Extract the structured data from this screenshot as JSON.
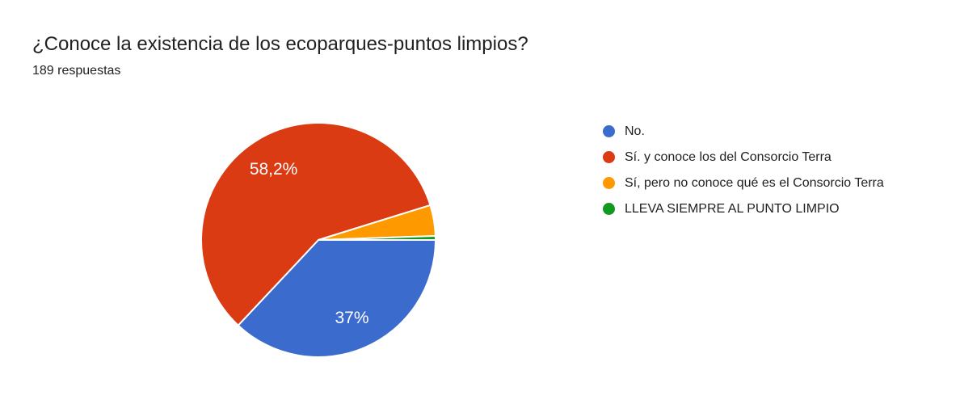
{
  "header": {
    "title": "¿Conoce la existencia de los ecoparques-puntos limpios?",
    "subtitle": "189 respuestas"
  },
  "chart_data": {
    "type": "pie",
    "title": "¿Conoce la existencia de los ecoparques-puntos limpios?",
    "subtitle": "189 respuestas",
    "start_angle_deg": 0,
    "direction": "clockwise",
    "legend_position": "right",
    "inner_label_color": "#ffffff",
    "slices": [
      {
        "label": "No.",
        "pct": 37.0,
        "display_pct": "37%",
        "color": "#3c6bce"
      },
      {
        "label": "Sí. y conoce los del Consorcio Terra",
        "pct": 58.2,
        "display_pct": "58,2%",
        "color": "#db3b13"
      },
      {
        "label": "Sí, pero no conoce qué es el Consorcio Terra",
        "pct": 4.25,
        "display_pct": "",
        "color": "#ff9900"
      },
      {
        "label": "LLEVA SIEMPRE AL PUNTO LIMPIO",
        "pct": 0.55,
        "display_pct": "",
        "color": "#12991f"
      }
    ]
  }
}
